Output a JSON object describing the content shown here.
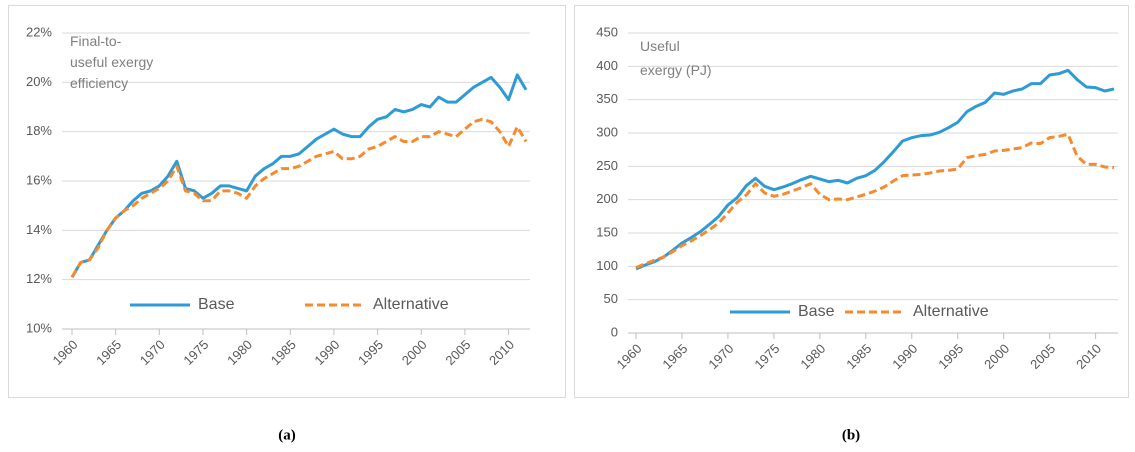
{
  "chart_data": [
    {
      "type": "line",
      "caption": "(a)",
      "annotation_lines": [
        "Final-to-",
        "useful exergy",
        "efficiency"
      ],
      "x": [
        1960,
        1961,
        1962,
        1963,
        1964,
        1965,
        1966,
        1967,
        1968,
        1969,
        1970,
        1971,
        1972,
        1973,
        1974,
        1975,
        1976,
        1977,
        1978,
        1979,
        1980,
        1981,
        1982,
        1983,
        1984,
        1985,
        1986,
        1987,
        1988,
        1989,
        1990,
        1991,
        1992,
        1993,
        1994,
        1995,
        1996,
        1997,
        1998,
        1999,
        2000,
        2001,
        2002,
        2003,
        2004,
        2005,
        2006,
        2007,
        2008,
        2009,
        2010,
        2011,
        2012
      ],
      "series": [
        {
          "name": "Base",
          "color": "#2e9bd6",
          "dashed": false,
          "values": [
            12.1,
            12.7,
            12.8,
            13.4,
            14.0,
            14.5,
            14.8,
            15.2,
            15.5,
            15.6,
            15.8,
            16.2,
            16.8,
            15.7,
            15.6,
            15.3,
            15.5,
            15.8,
            15.8,
            15.7,
            15.6,
            16.2,
            16.5,
            16.7,
            17.0,
            17.0,
            17.1,
            17.4,
            17.7,
            17.9,
            18.1,
            17.9,
            17.8,
            17.8,
            18.2,
            18.5,
            18.6,
            18.9,
            18.8,
            18.9,
            19.1,
            19.0,
            19.4,
            19.2,
            19.2,
            19.5,
            19.8,
            20.0,
            20.2,
            19.8,
            19.3,
            20.3,
            19.7
          ]
        },
        {
          "name": "Alternative",
          "color": "#f58a2e",
          "dashed": true,
          "values": [
            12.1,
            12.7,
            12.8,
            13.3,
            14.0,
            14.5,
            14.8,
            15.0,
            15.3,
            15.5,
            15.7,
            16.0,
            16.6,
            15.6,
            15.5,
            15.2,
            15.2,
            15.6,
            15.6,
            15.5,
            15.3,
            15.8,
            16.1,
            16.3,
            16.5,
            16.5,
            16.6,
            16.8,
            17.0,
            17.1,
            17.2,
            16.9,
            16.9,
            17.0,
            17.3,
            17.4,
            17.6,
            17.8,
            17.6,
            17.6,
            17.8,
            17.8,
            18.0,
            17.9,
            17.8,
            18.1,
            18.4,
            18.5,
            18.4,
            18.0,
            17.4,
            18.2,
            17.6
          ]
        }
      ],
      "xlim": [
        1960,
        2012
      ],
      "xticks": [
        1960,
        1965,
        1970,
        1975,
        1980,
        1985,
        1990,
        1995,
        2000,
        2005,
        2010
      ],
      "ylim": [
        10,
        22
      ],
      "yticks": [
        {
          "value": 10,
          "label": "10%"
        },
        {
          "value": 12,
          "label": "12%"
        },
        {
          "value": 14,
          "label": "14%"
        },
        {
          "value": 16,
          "label": "16%"
        },
        {
          "value": 18,
          "label": "18%"
        },
        {
          "value": 20,
          "label": "20%"
        },
        {
          "value": 22,
          "label": "22%"
        }
      ],
      "grid": true
    },
    {
      "type": "line",
      "caption": "(b)",
      "annotation_lines": [
        "Useful",
        "exergy (PJ)"
      ],
      "x": [
        1960,
        1961,
        1962,
        1963,
        1964,
        1965,
        1966,
        1967,
        1968,
        1969,
        1970,
        1971,
        1972,
        1973,
        1974,
        1975,
        1976,
        1977,
        1978,
        1979,
        1980,
        1981,
        1982,
        1983,
        1984,
        1985,
        1986,
        1987,
        1988,
        1989,
        1990,
        1991,
        1992,
        1993,
        1994,
        1995,
        1996,
        1997,
        1998,
        1999,
        2000,
        2001,
        2002,
        2003,
        2004,
        2005,
        2006,
        2007,
        2008,
        2009,
        2010,
        2011,
        2012
      ],
      "series": [
        {
          "name": "Base",
          "color": "#2e9bd6",
          "dashed": false,
          "values": [
            96,
            102,
            107,
            114,
            124,
            135,
            143,
            152,
            163,
            175,
            192,
            203,
            221,
            232,
            220,
            215,
            219,
            224,
            230,
            235,
            231,
            227,
            229,
            225,
            232,
            236,
            244,
            257,
            272,
            288,
            293,
            296,
            297,
            301,
            308,
            316,
            332,
            340,
            346,
            360,
            358,
            363,
            366,
            374,
            374,
            387,
            389,
            394,
            380,
            369,
            368,
            363,
            366
          ]
        },
        {
          "name": "Alternative",
          "color": "#f58a2e",
          "dashed": true,
          "values": [
            98,
            104,
            109,
            114,
            122,
            131,
            138,
            146,
            155,
            165,
            180,
            196,
            207,
            224,
            210,
            205,
            208,
            213,
            218,
            224,
            208,
            200,
            201,
            200,
            204,
            208,
            213,
            219,
            228,
            236,
            237,
            238,
            240,
            243,
            244,
            246,
            263,
            266,
            268,
            273,
            274,
            276,
            278,
            285,
            284,
            293,
            295,
            298,
            265,
            253,
            253,
            249,
            248
          ]
        }
      ],
      "xlim": [
        1960,
        2012
      ],
      "xticks": [
        1960,
        1965,
        1970,
        1975,
        1980,
        1985,
        1990,
        1995,
        2000,
        2005,
        2010
      ],
      "ylim": [
        0,
        450
      ],
      "yticks": [
        0,
        50,
        100,
        150,
        200,
        250,
        300,
        350,
        400,
        450
      ],
      "grid": true
    }
  ]
}
